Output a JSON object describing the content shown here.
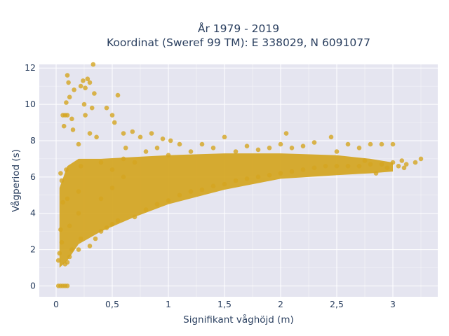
{
  "chart_data": {
    "type": "scatter",
    "title_lines": [
      "År 1979 - 2019",
      "Koordinat (Sweref 99 TM): E 338029, N 6091077"
    ],
    "xlabel": "Signifikant våghöjd (m)",
    "ylabel": "Vågperiod (s)",
    "xlim": [
      -0.15,
      3.4
    ],
    "ylim": [
      -0.6,
      12.2
    ],
    "xticks": [
      0,
      0.5,
      1,
      1.5,
      2,
      2.5,
      3
    ],
    "xtick_labels": [
      "0",
      "0,5",
      "1",
      "1,5",
      "2",
      "2,5",
      "3"
    ],
    "yticks": [
      0,
      2,
      4,
      6,
      8,
      10,
      12
    ],
    "ytick_labels": [
      "0",
      "2",
      "4",
      "6",
      "8",
      "10",
      "12"
    ],
    "grid": true,
    "colors": {
      "plot_bg": "#e5e5f0",
      "grid": "#ffffff",
      "marker": "#d4a520"
    },
    "series": [
      {
        "values_xy": [
          [
            0.02,
            0
          ],
          [
            0.04,
            0
          ],
          [
            0.06,
            0
          ],
          [
            0.08,
            0
          ],
          [
            0.1,
            0
          ],
          [
            0.02,
            1.4
          ],
          [
            0.03,
            1.8
          ],
          [
            0.05,
            2.4
          ],
          [
            0.04,
            3.1
          ],
          [
            0.06,
            4.6
          ],
          [
            0.05,
            5.8
          ],
          [
            0.04,
            6.2
          ],
          [
            0.06,
            9.4
          ],
          [
            0.08,
            9.4
          ],
          [
            0.1,
            9.4
          ],
          [
            0.07,
            8.8
          ],
          [
            0.09,
            10.1
          ],
          [
            0.08,
            1.2
          ],
          [
            0.1,
            1.3
          ],
          [
            0.12,
            1.6
          ],
          [
            0.14,
            2.0
          ],
          [
            0.12,
            3.3
          ],
          [
            0.1,
            4.8
          ],
          [
            0.09,
            6.4
          ],
          [
            0.1,
            11.6
          ],
          [
            0.11,
            11.2
          ],
          [
            0.12,
            10.4
          ],
          [
            0.14,
            9.2
          ],
          [
            0.16,
            10.8
          ],
          [
            0.15,
            8.6
          ],
          [
            0.2,
            2.0
          ],
          [
            0.22,
            2.6
          ],
          [
            0.2,
            4.0
          ],
          [
            0.2,
            5.2
          ],
          [
            0.22,
            6.6
          ],
          [
            0.2,
            7.8
          ],
          [
            0.22,
            11.0
          ],
          [
            0.24,
            11.3
          ],
          [
            0.26,
            10.9
          ],
          [
            0.25,
            10.0
          ],
          [
            0.28,
            11.4
          ],
          [
            0.3,
            11.2
          ],
          [
            0.26,
            9.4
          ],
          [
            0.3,
            8.4
          ],
          [
            0.32,
            9.8
          ],
          [
            0.34,
            10.6
          ],
          [
            0.33,
            12.2
          ],
          [
            0.36,
            8.2
          ],
          [
            0.3,
            2.2
          ],
          [
            0.35,
            2.6
          ],
          [
            0.4,
            3.0
          ],
          [
            0.45,
            3.2
          ],
          [
            0.5,
            3.4
          ],
          [
            0.55,
            3.6
          ],
          [
            0.4,
            4.8
          ],
          [
            0.5,
            5.4
          ],
          [
            0.5,
            6.4
          ],
          [
            0.4,
            6.8
          ],
          [
            0.6,
            6.0
          ],
          [
            0.6,
            7.0
          ],
          [
            0.45,
            9.8
          ],
          [
            0.5,
            9.4
          ],
          [
            0.55,
            10.5
          ],
          [
            0.52,
            9.0
          ],
          [
            0.6,
            8.4
          ],
          [
            0.62,
            7.6
          ],
          [
            0.7,
            3.8
          ],
          [
            0.8,
            4.2
          ],
          [
            0.9,
            4.5
          ],
          [
            1.0,
            4.7
          ],
          [
            1.1,
            5.0
          ],
          [
            1.2,
            5.2
          ],
          [
            0.7,
            6.8
          ],
          [
            0.8,
            7.4
          ],
          [
            0.9,
            7.6
          ],
          [
            1.0,
            7.2
          ],
          [
            1.1,
            7.8
          ],
          [
            1.2,
            7.4
          ],
          [
            0.68,
            8.5
          ],
          [
            0.75,
            8.2
          ],
          [
            0.85,
            8.4
          ],
          [
            0.95,
            8.1
          ],
          [
            1.02,
            8.0
          ],
          [
            1.3,
            5.3
          ],
          [
            1.4,
            5.5
          ],
          [
            1.5,
            5.6
          ],
          [
            1.6,
            5.8
          ],
          [
            1.7,
            5.9
          ],
          [
            1.8,
            6.0
          ],
          [
            1.3,
            7.8
          ],
          [
            1.4,
            7.6
          ],
          [
            1.5,
            8.2
          ],
          [
            1.6,
            7.4
          ],
          [
            1.7,
            7.7
          ],
          [
            1.8,
            7.5
          ],
          [
            1.9,
            6.1
          ],
          [
            2.0,
            6.2
          ],
          [
            2.1,
            6.3
          ],
          [
            2.2,
            6.4
          ],
          [
            2.3,
            6.5
          ],
          [
            2.4,
            6.6
          ],
          [
            1.9,
            7.6
          ],
          [
            2.0,
            7.8
          ],
          [
            2.05,
            8.4
          ],
          [
            2.1,
            7.6
          ],
          [
            2.2,
            7.7
          ],
          [
            2.3,
            7.9
          ],
          [
            2.5,
            6.6
          ],
          [
            2.6,
            6.6
          ],
          [
            2.7,
            6.6
          ],
          [
            2.8,
            6.7
          ],
          [
            2.9,
            6.7
          ],
          [
            3.0,
            6.8
          ],
          [
            2.45,
            8.2
          ],
          [
            2.5,
            7.4
          ],
          [
            2.6,
            7.8
          ],
          [
            2.7,
            7.6
          ],
          [
            2.8,
            7.8
          ],
          [
            2.9,
            7.8
          ],
          [
            3.05,
            6.6
          ],
          [
            3.1,
            6.5
          ],
          [
            3.2,
            6.8
          ],
          [
            3.25,
            7.0
          ],
          [
            3.12,
            6.7
          ],
          [
            3.0,
            7.8
          ],
          [
            3.08,
            6.9
          ],
          [
            2.95,
            6.5
          ],
          [
            2.85,
            6.2
          ],
          [
            2.75,
            6.9
          ]
        ]
      }
    ],
    "density_region": {
      "upper": [
        [
          0.03,
          5.4
        ],
        [
          0.1,
          6.6
        ],
        [
          0.2,
          7.0
        ],
        [
          0.4,
          7.0
        ],
        [
          0.7,
          7.1
        ],
        [
          1.0,
          7.2
        ],
        [
          1.5,
          7.3
        ],
        [
          2.0,
          7.3
        ],
        [
          2.5,
          7.2
        ],
        [
          2.8,
          7.0
        ],
        [
          3.0,
          6.8
        ]
      ],
      "lower": [
        [
          3.0,
          6.3
        ],
        [
          2.8,
          6.2
        ],
        [
          2.5,
          6.1
        ],
        [
          2.0,
          5.9
        ],
        [
          1.5,
          5.3
        ],
        [
          1.0,
          4.5
        ],
        [
          0.7,
          3.8
        ],
        [
          0.4,
          3.0
        ],
        [
          0.2,
          2.3
        ],
        [
          0.1,
          1.4
        ],
        [
          0.03,
          1.0
        ]
      ]
    }
  }
}
